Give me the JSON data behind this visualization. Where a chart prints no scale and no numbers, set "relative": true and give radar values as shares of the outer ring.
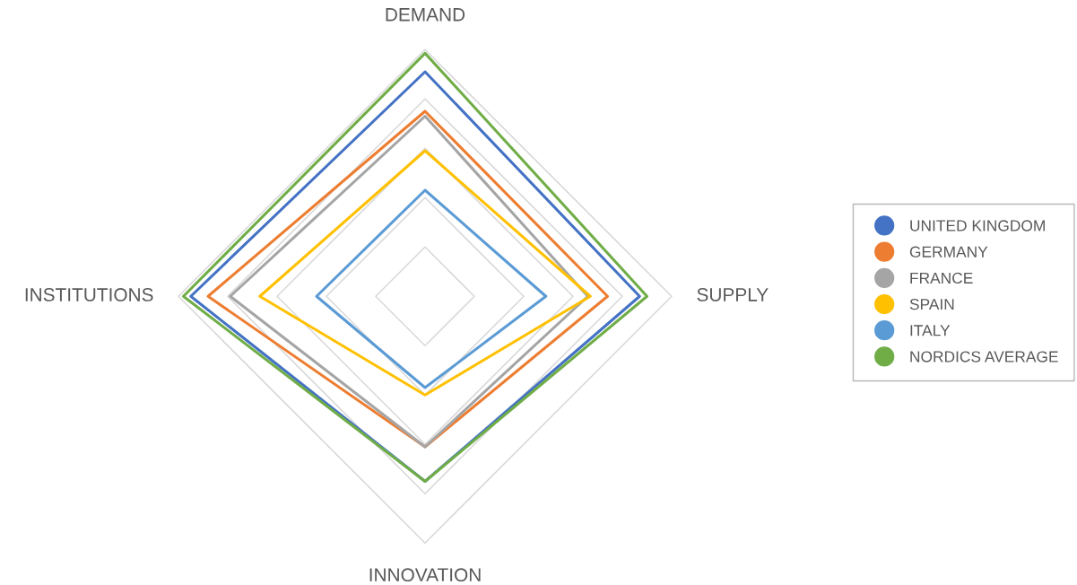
{
  "chart_data": {
    "type": "radar",
    "relative": true,
    "grid": true,
    "legend": "right",
    "marker": "none",
    "line_style": "solid",
    "categories": [
      "DEMAND",
      "SUPPLY",
      "INNOVATION",
      "INSTITUTIONS"
    ],
    "series": [
      {
        "name": "UNITED KINGDOM",
        "color": "#4472c4",
        "values": [
          0.91,
          0.87,
          0.75,
          0.95
        ]
      },
      {
        "name": "GERMANY",
        "color": "#ed7d31",
        "values": [
          0.75,
          0.74,
          0.61,
          0.88
        ]
      },
      {
        "name": "FRANCE",
        "color": "#a5a5a5",
        "values": [
          0.73,
          0.66,
          0.61,
          0.79
        ]
      },
      {
        "name": "SPAIN",
        "color": "#ffc000",
        "values": [
          0.59,
          0.67,
          0.4,
          0.67
        ]
      },
      {
        "name": "ITALY",
        "color": "#5b9bd5",
        "values": [
          0.43,
          0.49,
          0.37,
          0.44
        ]
      },
      {
        "name": "NORDICS AVERAGE",
        "color": "#70ad47",
        "values": [
          0.985,
          0.9,
          0.75,
          0.98
        ]
      }
    ]
  }
}
